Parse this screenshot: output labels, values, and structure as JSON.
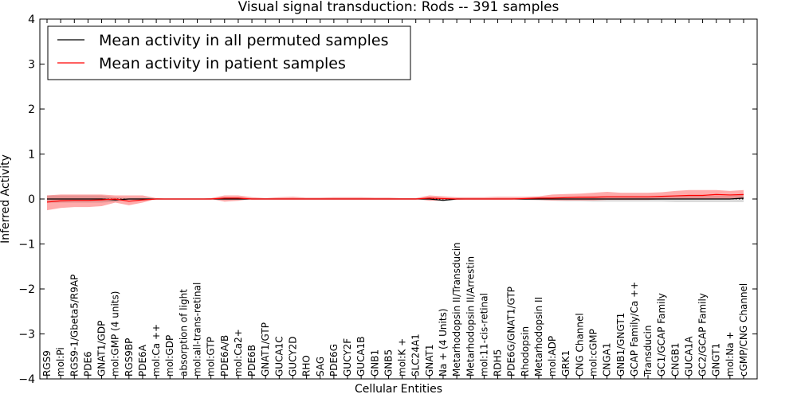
{
  "chart_data": {
    "type": "line",
    "title": "Visual signal transduction: Rods -- 391 samples",
    "xlabel": "Cellular Entities",
    "ylabel": "Inferred Activity",
    "ylim": [
      -4,
      4
    ],
    "yticks": [
      -4,
      -3,
      -2,
      -1,
      0,
      1,
      2,
      3,
      4
    ],
    "ytick_labels": [
      "−4",
      "−3",
      "−2",
      "−1",
      "0",
      "1",
      "2",
      "3",
      "4"
    ],
    "legend_position": "top-left",
    "categories": [
      "RGS9",
      "mol:Pi",
      "RGS9-1/Gbeta5/R9AP",
      "PDE6",
      "GNAT1/GDP",
      "mol:GMP (4 units)",
      "RGS9BP",
      "PDE6A",
      "mol:Ca ++",
      "mol:GDP",
      "absorption of light",
      "mol:all-trans-retinal",
      "mol:GTP",
      "PDE6A/B",
      "mol:Ca2+",
      "PDE6B",
      "GNAT1/GTP",
      "GUCA1C",
      "GUCY2D",
      "RHO",
      "SAG",
      "PDE6G",
      "GUCY2F",
      "GUCA1B",
      "GNB1",
      "GNB5",
      "mol:K +",
      "SLC24A1",
      "GNAT1",
      "Na + (4 Units)",
      "Metarhodopsin II/Transducin",
      "Metarhodopsin II/Arrestin",
      "mol:11-cis-retinal",
      "RDH5",
      "PDE6G/GNAT1/GTP",
      "Rhodopsin",
      "Metarhodopsin II",
      "mol:ADP",
      "GRK1",
      "CNG Channel",
      "mol:cGMP",
      "CNGA1",
      "GNB1/GNGT1",
      "GCAP Family/Ca ++",
      "Transducin",
      "GC1/GCAP Family",
      "CNGB1",
      "GUCA1A",
      "GC2/GCAP Family",
      "GNGT1",
      "mol:Na +",
      "cGMP/CNG Channel"
    ],
    "series": [
      {
        "name": "Mean activity in all permuted samples",
        "color": "#000000",
        "values": [
          0.0,
          0.0,
          0.0,
          0.0,
          0.0,
          -0.02,
          0.0,
          0.0,
          0.0,
          0.0,
          0.0,
          0.0,
          0.0,
          0.0,
          0.0,
          0.0,
          0.0,
          0.0,
          0.0,
          0.0,
          0.0,
          0.0,
          0.0,
          0.0,
          0.0,
          0.0,
          0.0,
          0.0,
          0.0,
          -0.03,
          0.0,
          0.0,
          0.0,
          0.0,
          0.0,
          0.0,
          0.0,
          0.0,
          0.0,
          0.0,
          0.0,
          0.0,
          0.0,
          0.0,
          0.0,
          0.0,
          0.0,
          0.0,
          0.0,
          0.0,
          0.0,
          0.02
        ],
        "band_lower": [
          -0.08,
          -0.08,
          -0.08,
          -0.08,
          -0.08,
          -0.06,
          -0.02,
          -0.02,
          0.0,
          0.0,
          0.0,
          0.0,
          0.0,
          -0.02,
          -0.02,
          0.0,
          0.0,
          0.0,
          0.0,
          0.0,
          0.0,
          0.0,
          0.0,
          0.0,
          0.0,
          0.0,
          0.0,
          0.0,
          -0.02,
          -0.05,
          -0.02,
          0.0,
          0.0,
          0.0,
          0.0,
          -0.02,
          -0.03,
          -0.04,
          -0.05,
          -0.05,
          -0.06,
          -0.06,
          -0.06,
          -0.06,
          -0.06,
          -0.06,
          -0.07,
          -0.07,
          -0.07,
          -0.07,
          -0.07,
          -0.07
        ],
        "band_upper": [
          0.08,
          0.08,
          0.08,
          0.08,
          0.08,
          0.04,
          0.02,
          0.02,
          0.0,
          0.0,
          0.0,
          0.0,
          0.0,
          0.02,
          0.02,
          0.0,
          0.0,
          0.0,
          0.0,
          0.0,
          0.0,
          0.0,
          0.0,
          0.0,
          0.0,
          0.0,
          0.0,
          0.0,
          0.02,
          0.0,
          0.02,
          0.0,
          0.0,
          0.0,
          0.0,
          0.02,
          0.03,
          0.04,
          0.05,
          0.05,
          0.06,
          0.06,
          0.06,
          0.06,
          0.06,
          0.06,
          0.07,
          0.07,
          0.07,
          0.07,
          0.07,
          0.09
        ]
      },
      {
        "name": "Mean activity in patient samples",
        "color": "#ff0000",
        "values": [
          -0.07,
          -0.04,
          -0.03,
          -0.03,
          -0.02,
          0.0,
          -0.05,
          -0.02,
          0.0,
          0.0,
          0.0,
          0.0,
          0.0,
          0.02,
          0.02,
          0.0,
          0.0,
          0.0,
          0.0,
          0.0,
          0.0,
          0.0,
          0.0,
          0.0,
          0.0,
          0.0,
          0.0,
          0.0,
          0.02,
          0.01,
          0.0,
          0.0,
          0.0,
          0.0,
          0.0,
          0.01,
          0.02,
          0.02,
          0.03,
          0.04,
          0.04,
          0.05,
          0.05,
          0.05,
          0.05,
          0.06,
          0.07,
          0.08,
          0.08,
          0.1,
          0.09,
          0.1
        ],
        "band_lower": [
          -0.25,
          -0.2,
          -0.18,
          -0.18,
          -0.16,
          -0.08,
          -0.14,
          -0.08,
          0.0,
          0.0,
          0.0,
          0.0,
          0.0,
          -0.06,
          -0.04,
          0.0,
          0.0,
          0.0,
          0.0,
          0.0,
          0.0,
          0.0,
          0.0,
          0.0,
          0.0,
          0.0,
          0.0,
          0.0,
          -0.04,
          -0.03,
          -0.01,
          0.0,
          0.0,
          0.0,
          -0.01,
          -0.02,
          -0.02,
          -0.03,
          -0.03,
          -0.03,
          -0.03,
          -0.02,
          -0.02,
          -0.02,
          -0.02,
          -0.01,
          -0.01,
          0.0,
          0.0,
          0.0,
          0.0,
          0.0
        ],
        "band_upper": [
          0.08,
          0.1,
          0.1,
          0.1,
          0.1,
          0.08,
          0.08,
          0.08,
          0.02,
          0.0,
          0.0,
          0.0,
          0.02,
          0.08,
          0.08,
          0.04,
          0.02,
          0.04,
          0.05,
          0.03,
          0.03,
          0.04,
          0.04,
          0.04,
          0.03,
          0.03,
          0.02,
          0.02,
          0.08,
          0.06,
          0.04,
          0.04,
          0.04,
          0.05,
          0.05,
          0.05,
          0.06,
          0.1,
          0.11,
          0.12,
          0.14,
          0.16,
          0.14,
          0.14,
          0.14,
          0.15,
          0.18,
          0.2,
          0.2,
          0.2,
          0.18,
          0.2
        ]
      }
    ]
  }
}
